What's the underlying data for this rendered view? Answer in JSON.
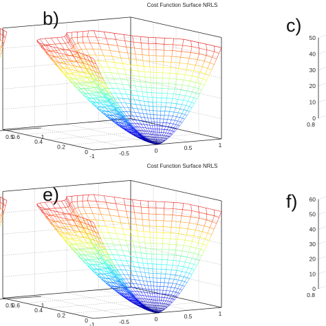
{
  "figure": {
    "background": "#ffffff"
  },
  "panels": [
    {
      "id": "a",
      "letter": "",
      "title": "",
      "yticks": [],
      "xticks": [
        "0.5",
        "1"
      ],
      "zticks": []
    },
    {
      "id": "b",
      "letter": "b)",
      "title": "Cost Function Surface NRLS",
      "yticks": [
        "0.8",
        "0.6",
        "0.4",
        "0.2",
        "0"
      ],
      "xticks": [
        "-1",
        "-0.5",
        "0",
        "0.5",
        "1"
      ],
      "zticks": [
        "0",
        "10",
        "20",
        "30",
        "40",
        "50"
      ]
    },
    {
      "id": "c",
      "letter": "c)",
      "title": "",
      "yticks": [
        "0.8"
      ],
      "xticks": [],
      "zticks": [
        "0",
        "10",
        "20",
        "30",
        "40",
        "50"
      ]
    },
    {
      "id": "d",
      "letter": "",
      "title": "",
      "yticks": [],
      "xticks": [
        "0.5",
        "1"
      ],
      "zticks": []
    },
    {
      "id": "e",
      "letter": "e)",
      "title": "Cost Function Surface NRLS",
      "yticks": [
        "0.8",
        "0.6",
        "0.4",
        "0.2",
        "0"
      ],
      "xticks": [
        "-1",
        "-0.5",
        "0",
        "0.5",
        "1"
      ],
      "zticks": [
        "0",
        "10",
        "20",
        "30",
        "40",
        "50"
      ]
    },
    {
      "id": "f",
      "letter": "f)",
      "title": "",
      "yticks": [
        "0.8"
      ],
      "xticks": [],
      "zticks": [
        "0",
        "10",
        "20",
        "30",
        "40",
        "50",
        "60"
      ]
    }
  ],
  "chart_data": [
    {
      "type": "surface",
      "title": "Cost Function Surface NRLS",
      "x_range": [
        -1,
        1
      ],
      "y_range": [
        0,
        0.8
      ],
      "z_range": [
        0,
        50
      ],
      "colormap": "jet",
      "style": "wireframe mesh",
      "minimum": {
        "x": 0,
        "y": 0,
        "z": 0
      },
      "max_z": 45
    },
    {
      "type": "surface",
      "title": "Cost Function Surface NRLS",
      "x_range": [
        -1,
        1
      ],
      "y_range": [
        0,
        0.8
      ],
      "z_range": [
        0,
        50
      ],
      "colormap": "jet",
      "style": "wireframe mesh",
      "minimum": {
        "x": 0,
        "y": 0,
        "z": 0
      },
      "max_z": 45
    }
  ]
}
